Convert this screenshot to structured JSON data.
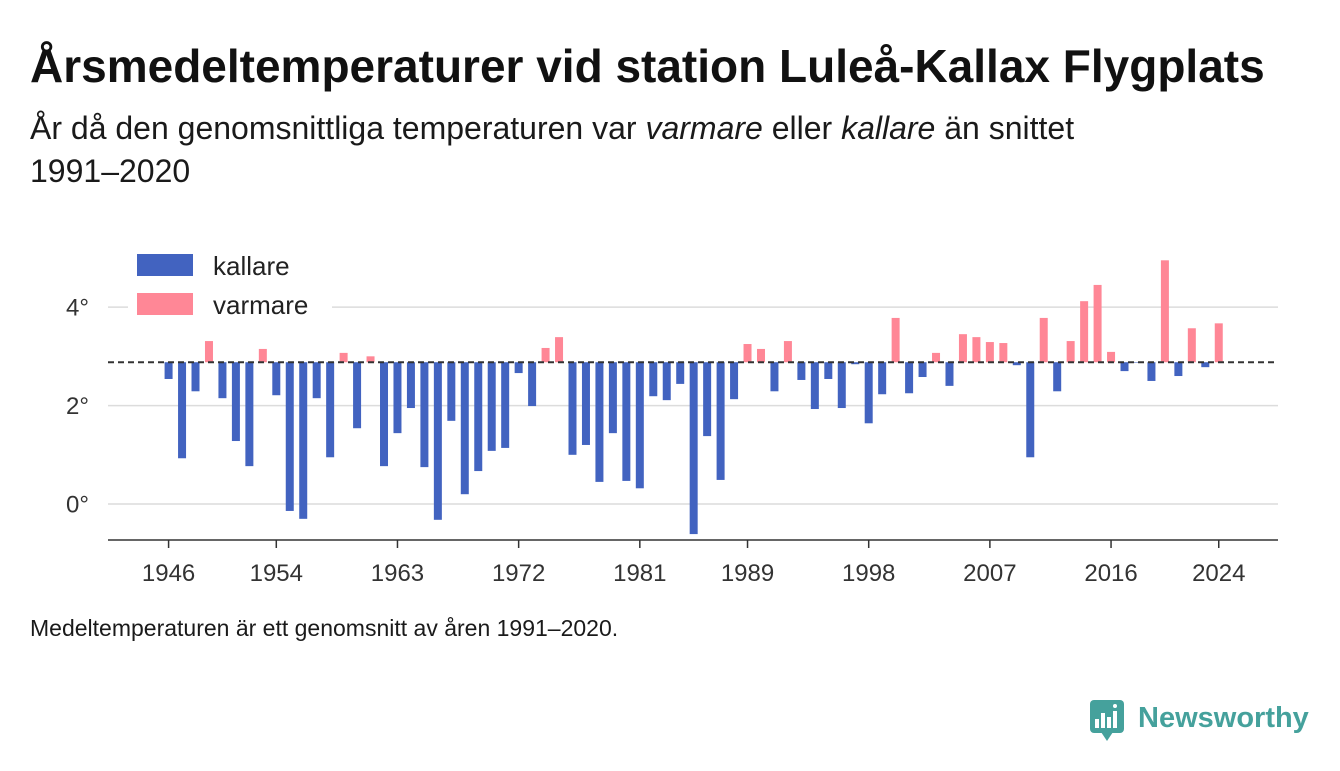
{
  "chart_data": {
    "type": "bar",
    "title": "Årsmedeltemperaturer vid station Luleå-Kallax Flygplats",
    "subtitle": [
      "År då den genomsnittliga temperaturen var ",
      "varmare",
      " eller ",
      "kallare",
      " än snittet ",
      "1991–2020"
    ],
    "footnote": "Medeltemperaturen är ett genomsnitt av åren 1991–2020.",
    "legend": [
      {
        "label": "kallare",
        "color": "#4263c0"
      },
      {
        "label": "varmare",
        "color": "#ff8796"
      }
    ],
    "legend_position": "top-left",
    "reference_mean": 2.88,
    "x": [
      1946,
      1947,
      1948,
      1949,
      1950,
      1951,
      1952,
      1953,
      1954,
      1955,
      1956,
      1957,
      1958,
      1959,
      1960,
      1961,
      1962,
      1963,
      1964,
      1965,
      1966,
      1967,
      1968,
      1969,
      1970,
      1971,
      1972,
      1973,
      1974,
      1975,
      1976,
      1977,
      1978,
      1979,
      1980,
      1981,
      1982,
      1983,
      1984,
      1985,
      1986,
      1987,
      1988,
      1989,
      1990,
      1991,
      1992,
      1993,
      1994,
      1995,
      1996,
      1997,
      1998,
      1999,
      2000,
      2001,
      2002,
      2003,
      2004,
      2005,
      2006,
      2007,
      2008,
      2009,
      2010,
      2011,
      2012,
      2013,
      2014,
      2015,
      2016,
      2017,
      2018,
      2019,
      2020,
      2021,
      2022,
      2023,
      2024
    ],
    "values": [
      2.54,
      0.93,
      2.29,
      3.31,
      2.15,
      1.28,
      0.77,
      3.15,
      2.21,
      -0.14,
      -0.3,
      2.15,
      0.95,
      3.07,
      1.54,
      3.0,
      0.77,
      1.44,
      1.95,
      0.75,
      -0.32,
      1.69,
      0.2,
      0.67,
      1.08,
      1.14,
      2.66,
      1.99,
      3.17,
      3.39,
      1.0,
      1.2,
      0.45,
      1.44,
      0.47,
      0.32,
      2.19,
      2.11,
      2.44,
      -0.61,
      1.38,
      0.49,
      2.13,
      3.25,
      3.15,
      2.29,
      3.31,
      2.52,
      1.93,
      2.54,
      1.95,
      2.84,
      1.64,
      2.23,
      3.78,
      2.25,
      2.58,
      3.07,
      2.4,
      3.45,
      3.39,
      3.29,
      3.27,
      2.82,
      0.95,
      3.78,
      2.29,
      3.31,
      4.12,
      4.45,
      3.09,
      2.7,
      2.87,
      2.5,
      4.95,
      2.6,
      3.57,
      2.78,
      3.67
    ],
    "x_ticks": [
      1946,
      1954,
      1963,
      1972,
      1981,
      1989,
      1998,
      2007,
      2016,
      2024
    ],
    "y_ticks": [
      0,
      2,
      4
    ],
    "y_tick_labels": [
      "0°",
      "2°",
      "4°"
    ],
    "xlim": [
      1941.5,
      2028.4
    ],
    "ylim": [
      -0.73,
      5.2
    ],
    "grid": "horizontal"
  },
  "logo": {
    "text": "Newsworthy",
    "icon": "bar-chart-bubble-icon",
    "color": "#45a19c"
  }
}
